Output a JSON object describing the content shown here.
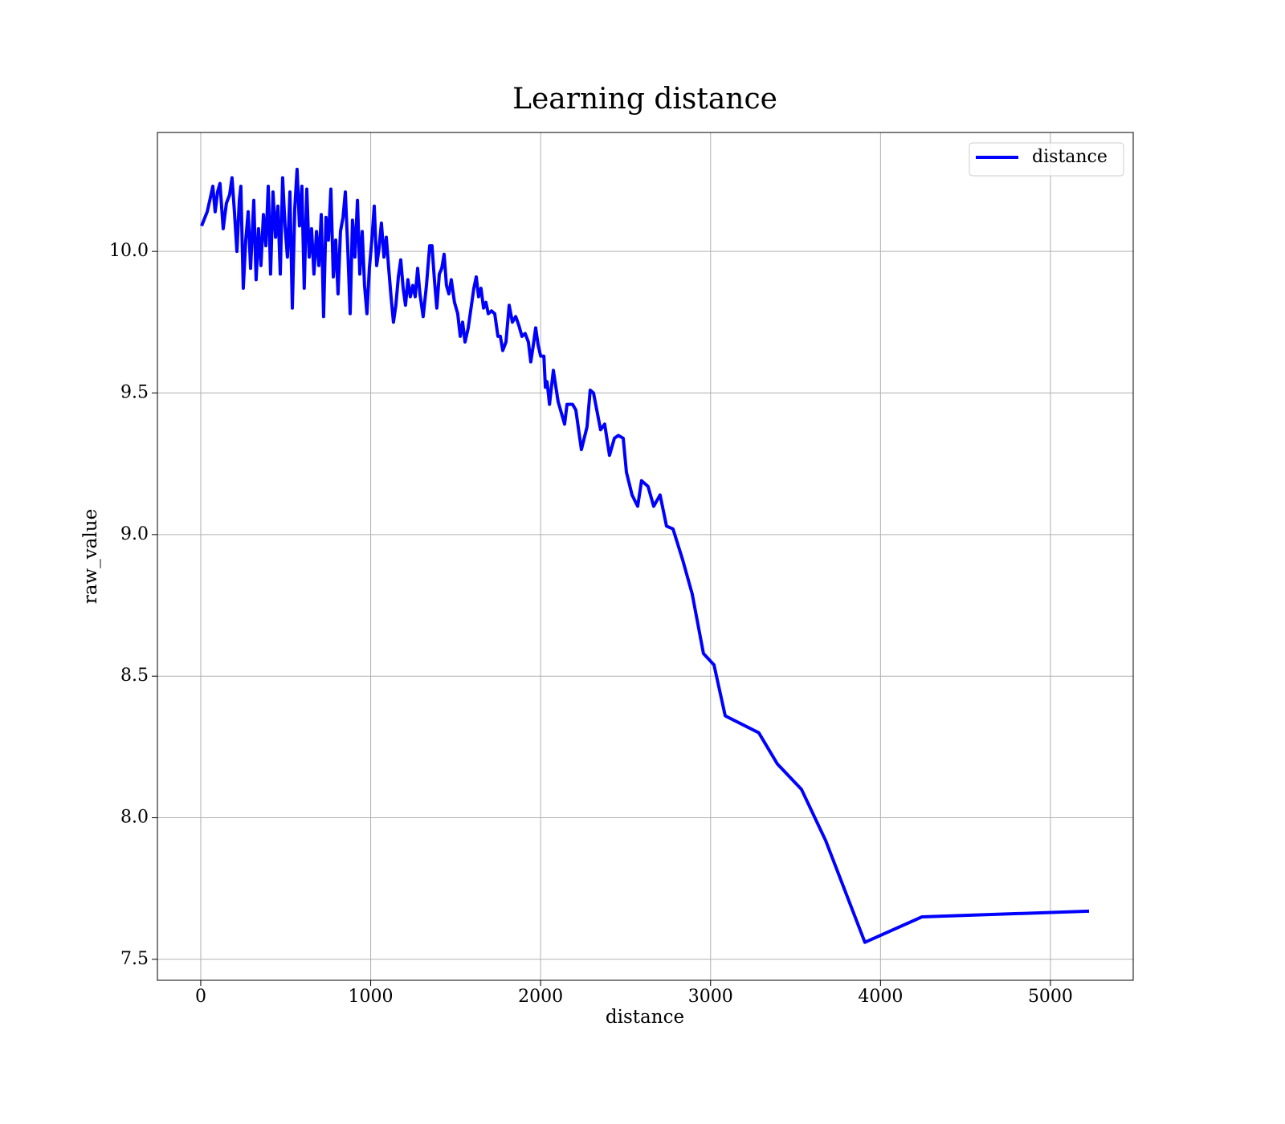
{
  "chart_data": {
    "type": "line",
    "title": "Learning distance",
    "xlabel": "distance",
    "ylabel": "raw_value",
    "x": [
      5,
      38,
      57,
      71,
      85,
      99,
      113,
      132,
      151,
      170,
      184,
      198,
      213,
      227,
      236,
      250,
      265,
      279,
      293,
      312,
      326,
      340,
      354,
      369,
      383,
      397,
      411,
      425,
      440,
      454,
      468,
      482,
      496,
      510,
      525,
      539,
      553,
      567,
      581,
      595,
      609,
      624,
      638,
      652,
      666,
      681,
      695,
      709,
      723,
      737,
      751,
      766,
      780,
      794,
      808,
      822,
      837,
      851,
      865,
      879,
      893,
      907,
      922,
      936,
      950,
      964,
      978,
      992,
      1007,
      1021,
      1035,
      1049,
      1063,
      1078,
      1092,
      1106,
      1120,
      1134,
      1148,
      1163,
      1177,
      1191,
      1205,
      1219,
      1233,
      1248,
      1262,
      1276,
      1290,
      1309,
      1328,
      1347,
      1361,
      1375,
      1389,
      1404,
      1418,
      1432,
      1446,
      1460,
      1474,
      1493,
      1512,
      1527,
      1541,
      1555,
      1574,
      1593,
      1607,
      1621,
      1635,
      1649,
      1664,
      1678,
      1692,
      1711,
      1730,
      1749,
      1763,
      1777,
      1796,
      1815,
      1834,
      1853,
      1871,
      1890,
      1909,
      1928,
      1942,
      1957,
      1971,
      1985,
      2000,
      2019,
      2028,
      2038,
      2052,
      2075,
      2103,
      2141,
      2155,
      2188,
      2207,
      2240,
      2273,
      2292,
      2311,
      2353,
      2377,
      2405,
      2434,
      2457,
      2486,
      2505,
      2538,
      2571,
      2594,
      2632,
      2665,
      2703,
      2741,
      2779,
      2836,
      2892,
      2958,
      3020,
      3086,
      3284,
      3393,
      3535,
      3677,
      3908,
      4244,
      5227
    ],
    "series": [
      {
        "name": "distance",
        "color": "#0000ff",
        "values": [
          10.09,
          10.14,
          10.19,
          10.23,
          10.14,
          10.21,
          10.24,
          10.08,
          10.17,
          10.2,
          10.26,
          10.14,
          10.0,
          10.18,
          10.23,
          9.87,
          10.04,
          10.14,
          9.94,
          10.18,
          9.9,
          10.08,
          9.95,
          10.13,
          10.02,
          10.23,
          9.92,
          10.21,
          10.05,
          10.16,
          9.92,
          10.26,
          10.09,
          9.98,
          10.21,
          9.8,
          10.15,
          10.29,
          10.09,
          10.23,
          9.87,
          10.22,
          9.98,
          10.08,
          9.92,
          10.07,
          9.95,
          10.13,
          9.77,
          10.12,
          10.04,
          10.22,
          9.91,
          10.04,
          9.85,
          10.07,
          10.12,
          10.21,
          10.01,
          9.78,
          10.11,
          9.98,
          10.18,
          9.92,
          10.07,
          9.88,
          9.78,
          9.94,
          10.04,
          10.16,
          9.95,
          10.01,
          10.1,
          9.98,
          10.05,
          9.94,
          9.84,
          9.75,
          9.81,
          9.91,
          9.97,
          9.87,
          9.81,
          9.9,
          9.84,
          9.88,
          9.84,
          9.94,
          9.85,
          9.77,
          9.88,
          10.02,
          10.02,
          9.9,
          9.8,
          9.92,
          9.94,
          9.99,
          9.88,
          9.85,
          9.9,
          9.82,
          9.78,
          9.7,
          9.75,
          9.68,
          9.73,
          9.81,
          9.87,
          9.91,
          9.84,
          9.87,
          9.8,
          9.82,
          9.78,
          9.79,
          9.78,
          9.7,
          9.7,
          9.65,
          9.68,
          9.81,
          9.75,
          9.77,
          9.74,
          9.7,
          9.71,
          9.68,
          9.61,
          9.67,
          9.73,
          9.67,
          9.63,
          9.63,
          9.52,
          9.54,
          9.46,
          9.58,
          9.47,
          9.39,
          9.46,
          9.46,
          9.44,
          9.3,
          9.38,
          9.51,
          9.5,
          9.37,
          9.39,
          9.28,
          9.34,
          9.35,
          9.34,
          9.22,
          9.14,
          9.1,
          9.19,
          9.17,
          9.1,
          9.14,
          9.03,
          9.02,
          8.91,
          8.79,
          8.58,
          8.54,
          8.36,
          8.3,
          8.19,
          8.1,
          7.92,
          7.56,
          7.65,
          7.67
        ]
      }
    ],
    "xlim": [
      -255,
      5487
    ],
    "ylim": [
      7.426,
      10.42
    ],
    "xticks": [
      0,
      1000,
      2000,
      3000,
      4000,
      5000
    ],
    "yticks": [
      7.5,
      {
        "value": 8,
        "label": "8.0"
      },
      8.5,
      {
        "value": 9,
        "label": "9.0"
      },
      9.5,
      {
        "value": 10,
        "label": "10.0"
      }
    ],
    "grid": true,
    "legend": "upper right"
  }
}
